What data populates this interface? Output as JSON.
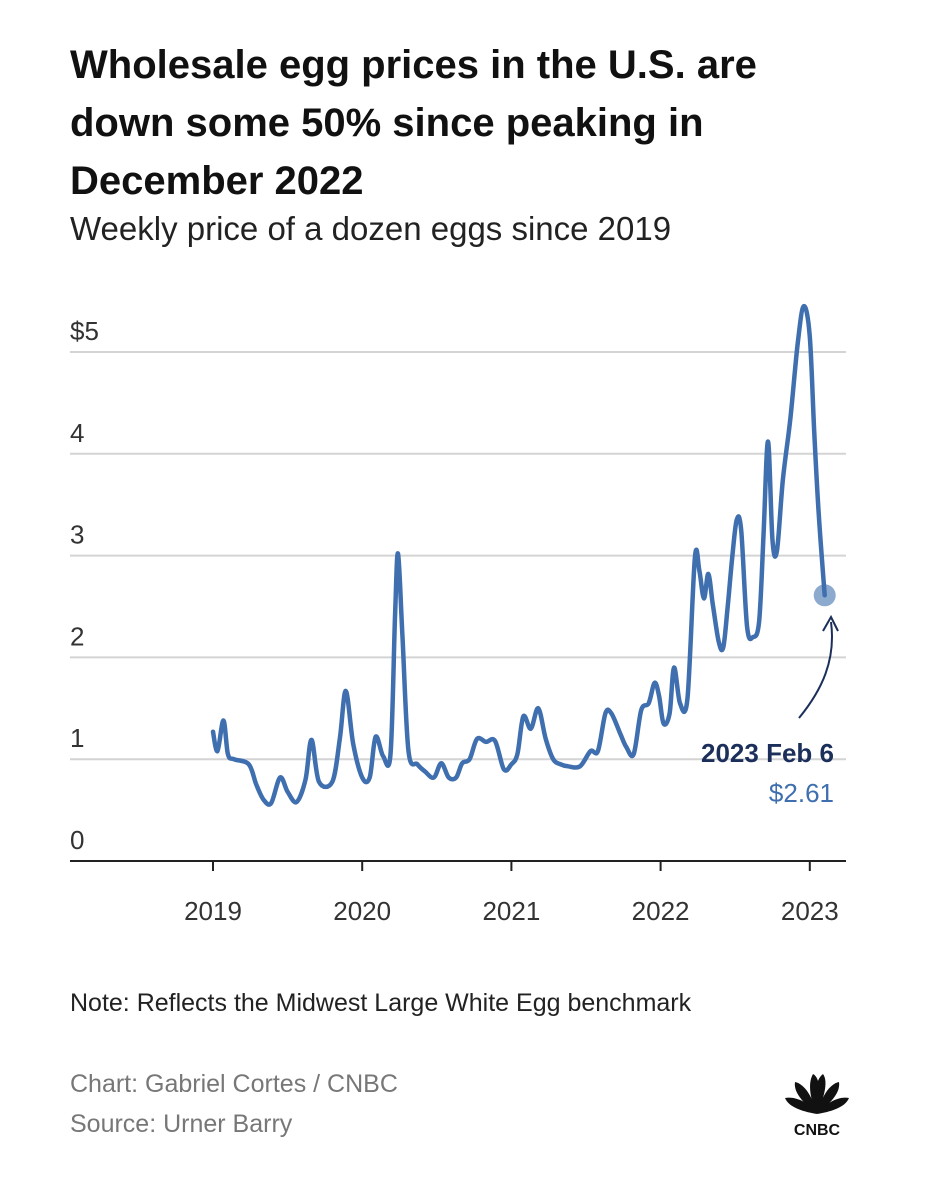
{
  "header": {
    "title": "Wholesale egg prices in the U.S. are down some 50% since peaking in December 2022",
    "subtitle": "Weekly price of a dozen eggs since 2019"
  },
  "chart_data": {
    "type": "line",
    "title": "Wholesale egg prices in the U.S. are down some 50% since peaking in December 2022",
    "subtitle": "Weekly price of a dozen eggs since 2019",
    "xlabel": "",
    "ylabel": "",
    "x_ticks": [
      "2019",
      "2020",
      "2021",
      "2022",
      "2023"
    ],
    "y_ticks": [
      "0",
      "1",
      "2",
      "3",
      "4",
      "$5"
    ],
    "ylim": [
      0,
      5.4
    ],
    "grid": "horizontal",
    "color": "#3f6fae",
    "series": [
      {
        "values": [
          {
            "x": 2019.0,
            "y": 1.27
          },
          {
            "x": 2019.03,
            "y": 1.08
          },
          {
            "x": 2019.07,
            "y": 1.38
          },
          {
            "x": 2019.1,
            "y": 1.05
          },
          {
            "x": 2019.14,
            "y": 1.0
          },
          {
            "x": 2019.24,
            "y": 0.95
          },
          {
            "x": 2019.29,
            "y": 0.75
          },
          {
            "x": 2019.34,
            "y": 0.6
          },
          {
            "x": 2019.39,
            "y": 0.57
          },
          {
            "x": 2019.45,
            "y": 0.82
          },
          {
            "x": 2019.5,
            "y": 0.68
          },
          {
            "x": 2019.56,
            "y": 0.58
          },
          {
            "x": 2019.62,
            "y": 0.8
          },
          {
            "x": 2019.66,
            "y": 1.19
          },
          {
            "x": 2019.71,
            "y": 0.78
          },
          {
            "x": 2019.8,
            "y": 0.78
          },
          {
            "x": 2019.85,
            "y": 1.2
          },
          {
            "x": 2019.89,
            "y": 1.67
          },
          {
            "x": 2019.94,
            "y": 1.15
          },
          {
            "x": 2020.0,
            "y": 0.82
          },
          {
            "x": 2020.05,
            "y": 0.82
          },
          {
            "x": 2020.09,
            "y": 1.22
          },
          {
            "x": 2020.14,
            "y": 1.03
          },
          {
            "x": 2020.19,
            "y": 1.05
          },
          {
            "x": 2020.22,
            "y": 2.4
          },
          {
            "x": 2020.24,
            "y": 3.02
          },
          {
            "x": 2020.27,
            "y": 2.2
          },
          {
            "x": 2020.31,
            "y": 1.08
          },
          {
            "x": 2020.37,
            "y": 0.95
          },
          {
            "x": 2020.42,
            "y": 0.88
          },
          {
            "x": 2020.48,
            "y": 0.82
          },
          {
            "x": 2020.53,
            "y": 0.96
          },
          {
            "x": 2020.58,
            "y": 0.82
          },
          {
            "x": 2020.63,
            "y": 0.82
          },
          {
            "x": 2020.67,
            "y": 0.96
          },
          {
            "x": 2020.72,
            "y": 1.0
          },
          {
            "x": 2020.77,
            "y": 1.2
          },
          {
            "x": 2020.83,
            "y": 1.17
          },
          {
            "x": 2020.89,
            "y": 1.18
          },
          {
            "x": 2020.95,
            "y": 0.9
          },
          {
            "x": 2021.0,
            "y": 0.95
          },
          {
            "x": 2021.04,
            "y": 1.05
          },
          {
            "x": 2021.08,
            "y": 1.42
          },
          {
            "x": 2021.13,
            "y": 1.3
          },
          {
            "x": 2021.18,
            "y": 1.5
          },
          {
            "x": 2021.23,
            "y": 1.2
          },
          {
            "x": 2021.28,
            "y": 1.0
          },
          {
            "x": 2021.33,
            "y": 0.95
          },
          {
            "x": 2021.38,
            "y": 0.93
          },
          {
            "x": 2021.46,
            "y": 0.93
          },
          {
            "x": 2021.53,
            "y": 1.08
          },
          {
            "x": 2021.58,
            "y": 1.08
          },
          {
            "x": 2021.63,
            "y": 1.45
          },
          {
            "x": 2021.67,
            "y": 1.45
          },
          {
            "x": 2021.73,
            "y": 1.25
          },
          {
            "x": 2021.77,
            "y": 1.12
          },
          {
            "x": 2021.82,
            "y": 1.05
          },
          {
            "x": 2021.87,
            "y": 1.48
          },
          {
            "x": 2021.92,
            "y": 1.55
          },
          {
            "x": 2021.96,
            "y": 1.75
          },
          {
            "x": 2021.99,
            "y": 1.62
          },
          {
            "x": 2022.02,
            "y": 1.35
          },
          {
            "x": 2022.06,
            "y": 1.45
          },
          {
            "x": 2022.09,
            "y": 1.9
          },
          {
            "x": 2022.13,
            "y": 1.55
          },
          {
            "x": 2022.18,
            "y": 1.6
          },
          {
            "x": 2022.23,
            "y": 2.98
          },
          {
            "x": 2022.26,
            "y": 2.85
          },
          {
            "x": 2022.29,
            "y": 2.58
          },
          {
            "x": 2022.32,
            "y": 2.82
          },
          {
            "x": 2022.35,
            "y": 2.52
          },
          {
            "x": 2022.39,
            "y": 2.15
          },
          {
            "x": 2022.42,
            "y": 2.1
          },
          {
            "x": 2022.45,
            "y": 2.5
          },
          {
            "x": 2022.48,
            "y": 2.98
          },
          {
            "x": 2022.51,
            "y": 3.35
          },
          {
            "x": 2022.54,
            "y": 3.25
          },
          {
            "x": 2022.58,
            "y": 2.3
          },
          {
            "x": 2022.62,
            "y": 2.2
          },
          {
            "x": 2022.66,
            "y": 2.35
          },
          {
            "x": 2022.69,
            "y": 3.2
          },
          {
            "x": 2022.72,
            "y": 4.12
          },
          {
            "x": 2022.75,
            "y": 3.15
          },
          {
            "x": 2022.78,
            "y": 3.05
          },
          {
            "x": 2022.82,
            "y": 3.75
          },
          {
            "x": 2022.87,
            "y": 4.35
          },
          {
            "x": 2022.92,
            "y": 5.1
          },
          {
            "x": 2022.96,
            "y": 5.45
          },
          {
            "x": 2023.0,
            "y": 5.15
          },
          {
            "x": 2023.03,
            "y": 4.2
          },
          {
            "x": 2023.06,
            "y": 3.4
          },
          {
            "x": 2023.1,
            "y": 2.61
          }
        ]
      }
    ],
    "annotation": {
      "label": "2023 Feb 6",
      "value": "$2.61",
      "x": 2023.1,
      "y": 2.61
    }
  },
  "footer": {
    "note": "Note: Reflects the Midwest Large White Egg benchmark",
    "chart_credit": "Chart: Gabriel Cortes / CNBC",
    "source": "Source: Urner Barry",
    "logo_text": "CNBC"
  }
}
